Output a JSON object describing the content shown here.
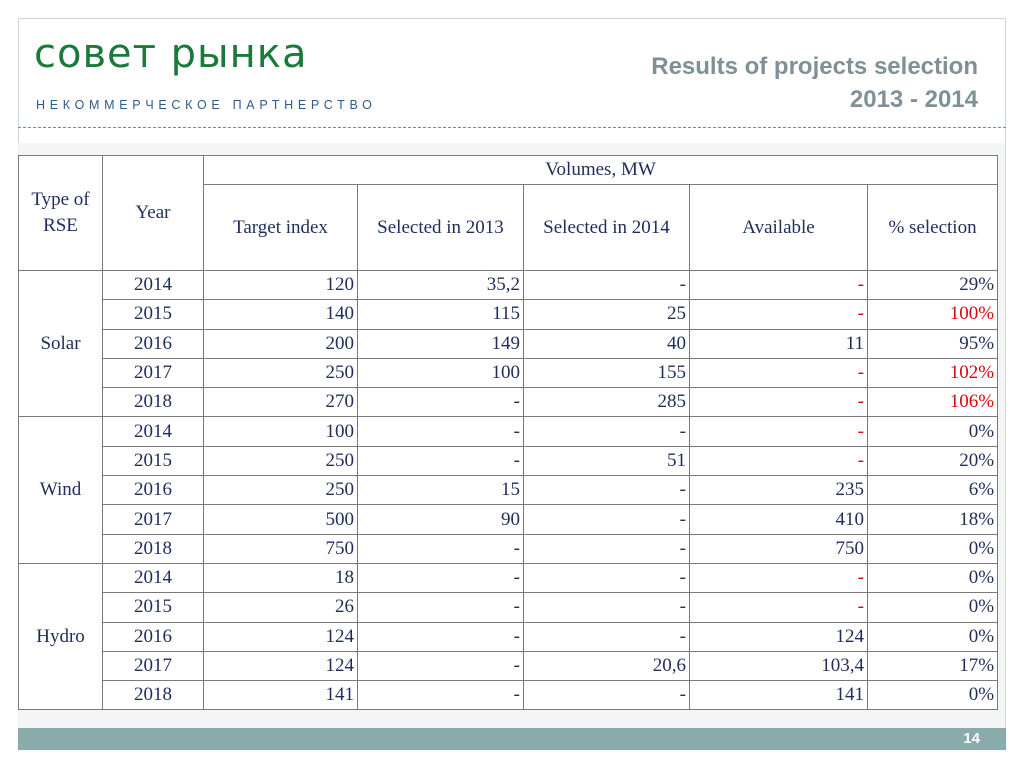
{
  "header": {
    "logo": "совет рынка",
    "tagline": "НЕКОММЕРЧЕСКОЕ ПАРТНЕРСТВО",
    "title_line1": "Results of projects selection",
    "title_line2": "2013 - 2014"
  },
  "table": {
    "headers": {
      "type": "Type of RSE",
      "year": "Year",
      "volumes": "Volumes, MW",
      "target": "Target index",
      "sel2013": "Selected in 2013",
      "sel2014": "Selected in 2014",
      "available": "Available",
      "pct": "% selection"
    },
    "groups": [
      {
        "name": "Solar",
        "rows": [
          {
            "year": "2014",
            "target": "120",
            "sel2013": "35,2",
            "sel2014": "-",
            "available": "-",
            "pct": "29%"
          },
          {
            "year": "2015",
            "target": "140",
            "sel2013": "115",
            "sel2014": "25",
            "available": "-",
            "pct": "100%"
          },
          {
            "year": "2016",
            "target": "200",
            "sel2013": "149",
            "sel2014": "40",
            "available": "11",
            "pct": "95%"
          },
          {
            "year": "2017",
            "target": "250",
            "sel2013": "100",
            "sel2014": "155",
            "available": "-",
            "pct": "102%"
          },
          {
            "year": "2018",
            "target": "270",
            "sel2013": "-",
            "sel2014": "285",
            "available": "-",
            "pct": "106%"
          }
        ]
      },
      {
        "name": "Wind",
        "rows": [
          {
            "year": "2014",
            "target": "100",
            "sel2013": "-",
            "sel2014": "-",
            "available": "-",
            "pct": "0%"
          },
          {
            "year": "2015",
            "target": "250",
            "sel2013": "-",
            "sel2014": "51",
            "available": "-",
            "pct": "20%"
          },
          {
            "year": "2016",
            "target": "250",
            "sel2013": "15",
            "sel2014": "-",
            "available": "235",
            "pct": "6%"
          },
          {
            "year": "2017",
            "target": "500",
            "sel2013": "90",
            "sel2014": "-",
            "available": "410",
            "pct": "18%"
          },
          {
            "year": "2018",
            "target": "750",
            "sel2013": "-",
            "sel2014": "-",
            "available": "750",
            "pct": "0%"
          }
        ]
      },
      {
        "name": "Hydro",
        "rows": [
          {
            "year": "2014",
            "target": "18",
            "sel2013": "-",
            "sel2014": "-",
            "available": "-",
            "pct": "0%"
          },
          {
            "year": "2015",
            "target": "26",
            "sel2013": "-",
            "sel2014": "-",
            "available": "-",
            "pct": "0%"
          },
          {
            "year": "2016",
            "target": "124",
            "sel2013": "-",
            "sel2014": "-",
            "available": "124",
            "pct": "0%"
          },
          {
            "year": "2017",
            "target": "124",
            "sel2013": "-",
            "sel2014": "20,6",
            "available": "103,4",
            "pct": "17%"
          },
          {
            "year": "2018",
            "target": "141",
            "sel2013": "-",
            "sel2014": "-",
            "available": "141",
            "pct": "0%"
          }
        ]
      }
    ]
  },
  "footer": {
    "page_number": "14"
  },
  "colors": {
    "logo_green": "#1a7a3a",
    "title_gray": "#7f9096",
    "text_navy": "#1e2d5c",
    "highlight_red": "#e0000c",
    "bar_teal": "#8aabab"
  }
}
